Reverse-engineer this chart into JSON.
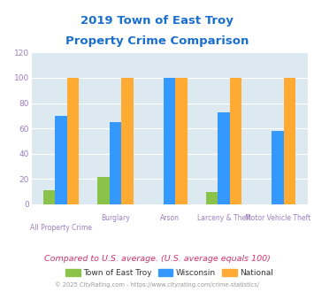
{
  "title_line1": "2019 Town of East Troy",
  "title_line2": "Property Crime Comparison",
  "categories": [
    "All Property Crime",
    "Burglary",
    "Arson",
    "Larceny & Theft",
    "Motor Vehicle Theft"
  ],
  "top_labels": [
    "",
    "Burglary",
    "Arson",
    "Larceny & Theft",
    "Motor Vehicle Theft"
  ],
  "bottom_labels": [
    "All Property Crime",
    "",
    "",
    "",
    ""
  ],
  "series": {
    "Town of East Troy": [
      11,
      22,
      0,
      10,
      0
    ],
    "Wisconsin": [
      70,
      65,
      100,
      73,
      58
    ],
    "National": [
      100,
      100,
      100,
      100,
      100
    ]
  },
  "colors": {
    "Town of East Troy": "#8bc34a",
    "Wisconsin": "#3399ff",
    "National": "#ffaa33"
  },
  "ylim": [
    0,
    120
  ],
  "yticks": [
    0,
    20,
    40,
    60,
    80,
    100,
    120
  ],
  "title_color": "#1a6fcc",
  "axis_label_color": "#9b7fc0",
  "tick_color": "#9b7fc0",
  "plot_bg_color": "#dce9f0",
  "footer_text": "Compared to U.S. average. (U.S. average equals 100)",
  "copyright_text": "© 2025 CityRating.com - https://www.cityrating.com/crime-statistics/",
  "footer_color": "#cc3366",
  "copyright_color": "#999999",
  "bar_width": 0.22
}
